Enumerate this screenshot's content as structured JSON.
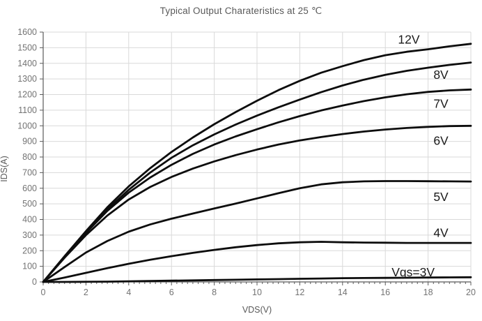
{
  "chart_data": {
    "type": "line",
    "title": "Typical Output Charateristics at 25 ℃",
    "xlabel": "VDS(V)",
    "ylabel": "IDS(A)",
    "xlim": [
      0,
      20
    ],
    "ylim": [
      0,
      1600
    ],
    "x_major_step": 2,
    "x_minor_step": 0.25,
    "y_major_step": 100,
    "grid": true,
    "legend_position": "inline-labels",
    "x": [
      0,
      1,
      2,
      3,
      4,
      5,
      6,
      7,
      8,
      9,
      10,
      11,
      12,
      13,
      14,
      15,
      16,
      17,
      18,
      19,
      20
    ],
    "series": [
      {
        "name": "Vgs=12V",
        "label": "12V",
        "label_x": 17.1,
        "label_y": 1553,
        "values": [
          0,
          165,
          325,
          478,
          612,
          728,
          832,
          925,
          1010,
          1088,
          1160,
          1228,
          1288,
          1340,
          1382,
          1421,
          1452,
          1474,
          1490,
          1509,
          1525
        ]
      },
      {
        "name": "Vgs=8V",
        "label": "8V",
        "label_x": 18.6,
        "label_y": 1328,
        "values": [
          0,
          162,
          318,
          465,
          590,
          700,
          795,
          875,
          945,
          1008,
          1065,
          1118,
          1168,
          1215,
          1258,
          1295,
          1326,
          1352,
          1372,
          1390,
          1405
        ]
      },
      {
        "name": "Vgs=7V",
        "label": "7V",
        "label_x": 18.6,
        "label_y": 1143,
        "values": [
          0,
          160,
          314,
          455,
          572,
          668,
          750,
          820,
          880,
          932,
          978,
          1022,
          1062,
          1098,
          1130,
          1158,
          1182,
          1202,
          1217,
          1227,
          1232
        ]
      },
      {
        "name": "Vgs=6V",
        "label": "6V",
        "label_x": 18.6,
        "label_y": 905,
        "values": [
          0,
          155,
          300,
          425,
          528,
          608,
          672,
          726,
          772,
          812,
          848,
          880,
          906,
          928,
          947,
          963,
          976,
          986,
          993,
          998,
          1000
        ]
      },
      {
        "name": "Vgs=5V",
        "label": "5V",
        "label_x": 18.6,
        "label_y": 545,
        "values": [
          0,
          95,
          188,
          262,
          322,
          368,
          405,
          438,
          470,
          502,
          535,
          568,
          600,
          625,
          638,
          644,
          646,
          646,
          645,
          644,
          643
        ]
      },
      {
        "name": "Vgs=4V",
        "label": "4V",
        "label_x": 18.6,
        "label_y": 315,
        "values": [
          0,
          28,
          58,
          88,
          116,
          142,
          165,
          186,
          205,
          222,
          236,
          247,
          254,
          257,
          254,
          252,
          251,
          250,
          250,
          250,
          250
        ]
      },
      {
        "name": "Vgs=3V",
        "label": "Vgs=3V",
        "label_x": 17.3,
        "label_y": 62,
        "values": [
          0,
          0,
          1,
          2,
          4,
          6,
          8,
          10,
          12,
          14,
          16,
          18,
          20,
          22,
          24,
          25,
          26,
          27,
          28,
          29,
          30
        ]
      }
    ],
    "colors": {
      "curve": "#0d0d0d",
      "grid": "#d9d9d9",
      "spine": "#595959",
      "tick": "#595959",
      "tick_label": "#737373",
      "title": "#595959",
      "curve_label": "#1a1a1a"
    }
  }
}
